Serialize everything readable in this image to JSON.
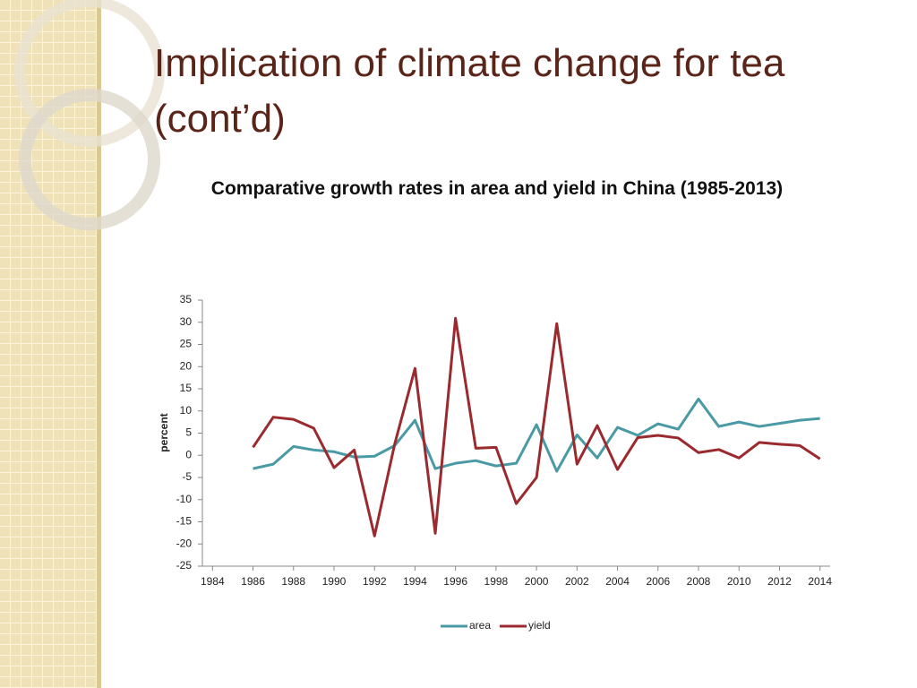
{
  "title": "Implication of climate change for tea (cont’d)",
  "chart_data": {
    "type": "line",
    "title": "Comparative growth rates in area and yield in China (1985-2013)",
    "y_label": "percent",
    "x": [
      1986,
      1987,
      1988,
      1989,
      1990,
      1991,
      1992,
      1993,
      1994,
      1995,
      1996,
      1997,
      1998,
      1999,
      2000,
      2001,
      2002,
      2003,
      2004,
      2005,
      2006,
      2007,
      2008,
      2009,
      2010,
      2011,
      2012,
      2013,
      2014
    ],
    "series": [
      {
        "name": "area",
        "color": "#4a9aa5",
        "values": [
          -3,
          -2,
          2,
          1.2,
          0.8,
          -0.4,
          -0.2,
          2.2,
          7.9,
          -3,
          -1.8,
          -1.2,
          -2.4,
          -1.8,
          6.9,
          -3.6,
          4.6,
          -0.6,
          6.3,
          4.5,
          7.1,
          5.9,
          12.7,
          6.5,
          7.5,
          6.5,
          7.2,
          7.9,
          8.3
        ]
      },
      {
        "name": "yield",
        "color": "#9b2a2f",
        "values": [
          1.8,
          8.6,
          8.1,
          6.1,
          -2.8,
          1.2,
          -18.2,
          2.6,
          19.6,
          -17.6,
          30.9,
          1.6,
          1.8,
          -10.9,
          -5,
          29.7,
          -2,
          6.7,
          -3.2,
          4,
          4.5,
          3.9,
          0.6,
          1.3,
          -0.6,
          2.9,
          2.5,
          2.2,
          -0.8
        ]
      }
    ],
    "xlim": [
      1983.5,
      2014.5
    ],
    "xticks": [
      1984,
      1986,
      1988,
      1990,
      1992,
      1994,
      1996,
      1998,
      2000,
      2002,
      2004,
      2006,
      2008,
      2010,
      2012,
      2014
    ],
    "ylim": [
      -25,
      35
    ],
    "yticks": [
      -25,
      -20,
      -15,
      -10,
      -5,
      0,
      5,
      10,
      15,
      20,
      25,
      30,
      35
    ],
    "grid": false,
    "legend": "bottom"
  }
}
